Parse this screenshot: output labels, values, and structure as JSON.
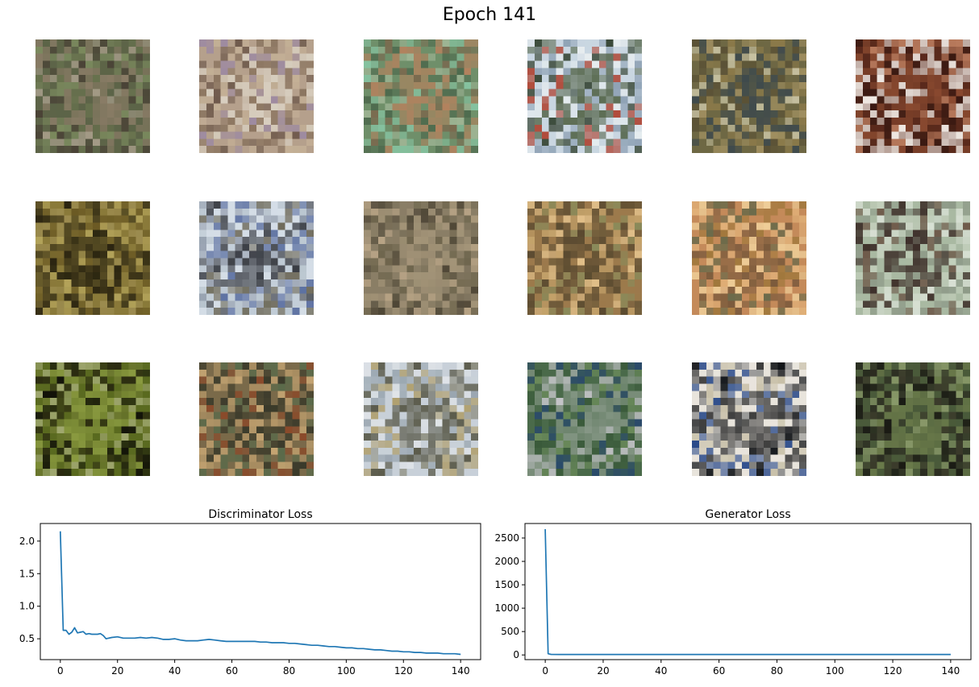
{
  "figure_title": "Epoch 141",
  "samples": {
    "rows": 3,
    "cols": 6,
    "palettes": [
      [
        "#5d6448",
        "#7b8a5e",
        "#8a7c66",
        "#4a4236",
        "#a39a86",
        "#69734f"
      ],
      [
        "#b5a08c",
        "#8b7560",
        "#d8cfc0",
        "#6f5a4c",
        "#9e8ba0",
        "#c4b096"
      ],
      [
        "#6f8f6a",
        "#9fb595",
        "#b2825e",
        "#4e6a4e",
        "#86c2a0",
        "#7a6a4f"
      ],
      [
        "#c9d6e1",
        "#e6ecef",
        "#5b6b52",
        "#8fa2b5",
        "#3b4a3a",
        "#b04a3a"
      ],
      [
        "#6e6844",
        "#8b7a4a",
        "#3f4a4c",
        "#a08f60",
        "#5b5236",
        "#c8c2a2"
      ],
      [
        "#5a2a1c",
        "#dfd5cf",
        "#8a4a30",
        "#3a1a12",
        "#b87a5c",
        "#f0eae4"
      ],
      [
        "#8a7a3a",
        "#6b5a24",
        "#2a2410",
        "#b3a35a",
        "#4e4420",
        "#9c8c50"
      ],
      [
        "#d4dde6",
        "#5b6fa0",
        "#3a3d44",
        "#8e98a8",
        "#b8c4ce",
        "#6e6a5a"
      ],
      [
        "#8a7e66",
        "#6e654d",
        "#a39478",
        "#4e4636",
        "#b8a486",
        "#7a705a"
      ],
      [
        "#9c7a4c",
        "#c6a46c",
        "#5a4a30",
        "#8a8a5a",
        "#e2c08a",
        "#6e5a3a"
      ],
      [
        "#c48a5a",
        "#e2b27a",
        "#7a5a3c",
        "#a0783c",
        "#f0d09a",
        "#6a6a4a"
      ],
      [
        "#a9b9a2",
        "#c3cfbc",
        "#3e302a",
        "#6e5a4a",
        "#d8e0d4",
        "#8e9a88"
      ],
      [
        "#5a6a20",
        "#2a2a10",
        "#8a9a40",
        "#111108",
        "#6e7a30",
        "#a0a870"
      ],
      [
        "#7a6a4a",
        "#c4a472",
        "#3a3a2a",
        "#8a4a2a",
        "#5a6a4a",
        "#b89a6a"
      ],
      [
        "#c8d0d8",
        "#8a8a7a",
        "#5a5a4a",
        "#e0e4e8",
        "#9aa6b0",
        "#b0a070"
      ],
      [
        "#4a6a4a",
        "#2a4a6a",
        "#8a9a8a",
        "#3a5a3a",
        "#c4c4c8",
        "#6a8a5a"
      ],
      [
        "#e8e4dc",
        "#2a4a8a",
        "#3a3a3a",
        "#c8c0a8",
        "#111418",
        "#8a8a8a"
      ],
      [
        "#4a5a3a",
        "#2a2a20",
        "#6a7a4a",
        "#3a3a2a",
        "#8a9a6a",
        "#1a1a14"
      ]
    ]
  },
  "chart_data": [
    {
      "type": "line",
      "title": "Discriminator Loss",
      "xlim": [
        -7,
        147
      ],
      "ylim": [
        0.18,
        2.27
      ],
      "xticks": [
        0,
        20,
        40,
        60,
        80,
        100,
        120,
        140
      ],
      "yticks": [
        0.5,
        1.0,
        1.5,
        2.0
      ],
      "ytick_labels": [
        "0.5",
        "1.0",
        "1.5",
        "2.0"
      ],
      "color": "#1f77b4",
      "x": [
        0,
        1,
        2,
        3,
        4,
        5,
        6,
        7,
        8,
        9,
        10,
        11,
        12,
        13,
        14,
        15,
        16,
        18,
        20,
        22,
        24,
        26,
        28,
        30,
        32,
        34,
        36,
        38,
        40,
        42,
        44,
        46,
        48,
        50,
        52,
        54,
        56,
        58,
        60,
        62,
        64,
        66,
        68,
        70,
        72,
        74,
        76,
        78,
        80,
        82,
        84,
        86,
        88,
        90,
        92,
        94,
        96,
        98,
        100,
        102,
        104,
        106,
        108,
        110,
        112,
        114,
        116,
        118,
        120,
        122,
        124,
        126,
        128,
        130,
        132,
        134,
        136,
        138,
        140
      ],
      "y": [
        2.15,
        0.63,
        0.63,
        0.57,
        0.6,
        0.67,
        0.59,
        0.6,
        0.61,
        0.57,
        0.58,
        0.57,
        0.57,
        0.57,
        0.58,
        0.55,
        0.5,
        0.52,
        0.53,
        0.51,
        0.51,
        0.51,
        0.52,
        0.51,
        0.52,
        0.51,
        0.49,
        0.49,
        0.5,
        0.48,
        0.47,
        0.47,
        0.47,
        0.48,
        0.49,
        0.48,
        0.47,
        0.46,
        0.46,
        0.46,
        0.46,
        0.46,
        0.46,
        0.45,
        0.45,
        0.44,
        0.44,
        0.44,
        0.43,
        0.43,
        0.42,
        0.41,
        0.4,
        0.4,
        0.39,
        0.38,
        0.38,
        0.37,
        0.36,
        0.36,
        0.35,
        0.35,
        0.34,
        0.33,
        0.33,
        0.32,
        0.31,
        0.31,
        0.3,
        0.3,
        0.29,
        0.29,
        0.28,
        0.28,
        0.28,
        0.27,
        0.27,
        0.27,
        0.26
      ]
    },
    {
      "type": "line",
      "title": "Generator Loss",
      "xlim": [
        -7,
        147
      ],
      "ylim": [
        -100,
        2810
      ],
      "xticks": [
        0,
        20,
        40,
        60,
        80,
        100,
        120,
        140
      ],
      "yticks": [
        0,
        500,
        1000,
        1500,
        2000,
        2500
      ],
      "ytick_labels": [
        "0",
        "500",
        "1000",
        "1500",
        "2000",
        "2500"
      ],
      "color": "#1f77b4",
      "x": [
        0,
        1,
        2,
        5,
        10,
        20,
        40,
        60,
        80,
        100,
        120,
        140
      ],
      "y": [
        2690,
        25,
        12,
        10,
        10,
        10,
        10,
        10,
        10,
        10,
        10,
        10
      ]
    }
  ]
}
